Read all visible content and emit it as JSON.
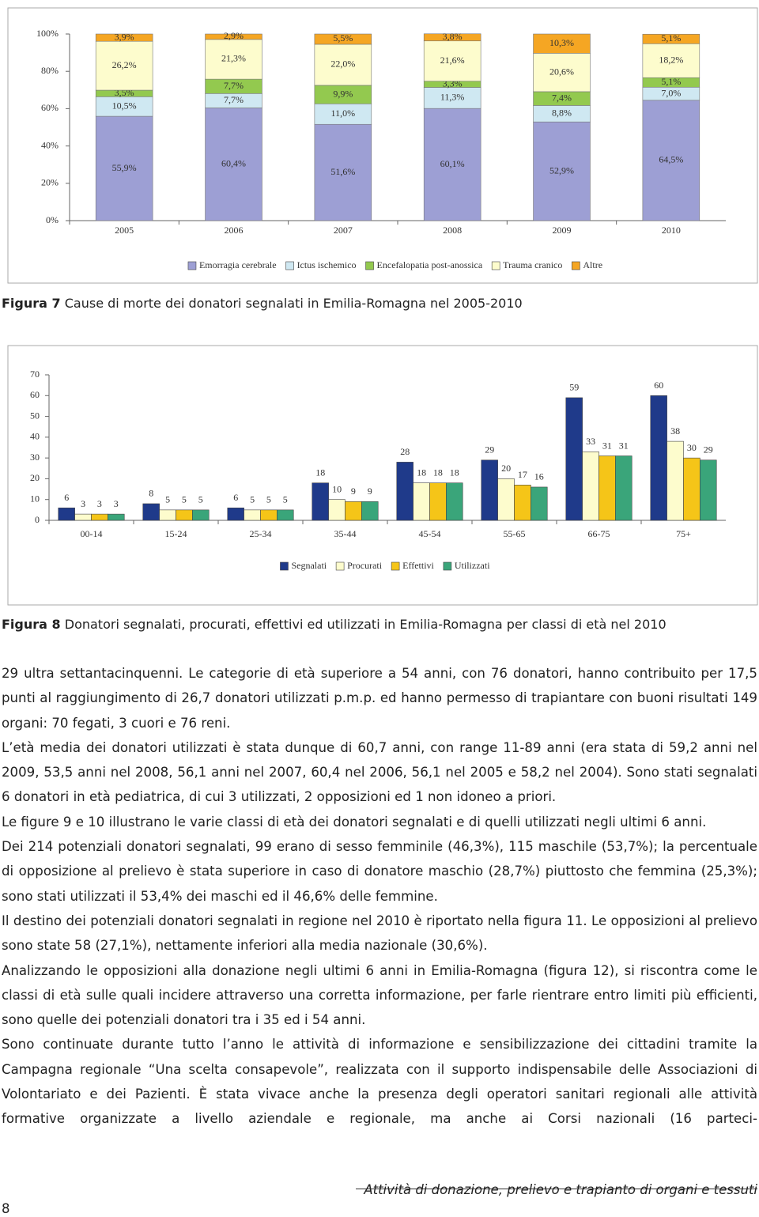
{
  "chart_data": [
    {
      "type": "bar",
      "stacked": true,
      "categories": [
        "2005",
        "2006",
        "2007",
        "2008",
        "2009",
        "2010"
      ],
      "series": [
        {
          "name": "Emorragia cerebrale",
          "color": "#9d9fd4",
          "values": [
            55.9,
            60.4,
            51.6,
            60.1,
            52.9,
            64.5
          ],
          "value_labels": [
            "55,9%",
            "60,4%",
            "51,6%",
            "60,1%",
            "52,9%",
            "64,5%"
          ]
        },
        {
          "name": "Ictus ischemico",
          "color": "#cfe8f2",
          "values": [
            10.5,
            7.7,
            11.0,
            11.3,
            8.8,
            7.0
          ],
          "value_labels": [
            "10,5%",
            "7,7%",
            "11,0%",
            "11,3%",
            "8,8%",
            "7,0%"
          ]
        },
        {
          "name": "Encefalopatia post-anossica",
          "color": "#93c94f",
          "values": [
            3.5,
            7.7,
            9.9,
            3.3,
            7.4,
            5.1
          ],
          "value_labels": [
            "3,5%",
            "7,7%",
            "9,9%",
            "3,3%",
            "7,4%",
            "5,1%"
          ]
        },
        {
          "name": "Trauma cranico",
          "color": "#fdfccd",
          "values": [
            26.2,
            21.3,
            22.0,
            21.6,
            20.6,
            18.2
          ],
          "value_labels": [
            "26,2%",
            "21,3%",
            "22,0%",
            "21,6%",
            "20,6%",
            "18,2%"
          ]
        },
        {
          "name": "Altre",
          "color": "#f5a623",
          "values": [
            3.9,
            2.9,
            5.5,
            3.8,
            10.3,
            5.1
          ],
          "value_labels": [
            "3,9%",
            "2,9%",
            "5,5%",
            "3,8%",
            "10,3%",
            "5,1%"
          ]
        }
      ],
      "ylim": [
        0,
        100
      ],
      "yticks": [
        {
          "value": 0,
          "label": "0%"
        },
        {
          "value": 20,
          "label": "20%"
        },
        {
          "value": 40,
          "label": "40%"
        },
        {
          "value": 60,
          "label": "60%"
        },
        {
          "value": 80,
          "label": "80%"
        },
        {
          "value": 100,
          "label": "100%"
        }
      ],
      "legend": "bottom"
    },
    {
      "type": "bar",
      "stacked": false,
      "categories": [
        "00-14",
        "15-24",
        "25-34",
        "35-44",
        "45-54",
        "55-65",
        "66-75",
        "75+"
      ],
      "series": [
        {
          "name": "Segnalati",
          "color": "#1f3a8a",
          "values": [
            6,
            8,
            6,
            18,
            28,
            29,
            59,
            60
          ]
        },
        {
          "name": "Procurati",
          "color": "#fdfccd",
          "values": [
            3,
            5,
            5,
            10,
            18,
            20,
            33,
            38
          ]
        },
        {
          "name": "Effettivi",
          "color": "#f5c518",
          "values": [
            3,
            5,
            5,
            9,
            18,
            17,
            31,
            30
          ]
        },
        {
          "name": "Utilizzati",
          "color": "#3aa57a",
          "values": [
            3,
            5,
            5,
            9,
            18,
            16,
            31,
            29
          ]
        }
      ],
      "ylim": [
        0,
        70
      ],
      "yticks": [
        0,
        10,
        20,
        30,
        40,
        50,
        60,
        70
      ],
      "legend": "bottom"
    }
  ],
  "figure_captions": [
    {
      "label": "Figura 7",
      "text": "Cause di morte dei donatori segnalati in Emilia-Romagna nel 2005-2010"
    },
    {
      "label": "Figura 8",
      "text": "Donatori segnalati, procurati, effettivi ed utilizzati in Emilia-Romagna per classi di età nel 2010"
    }
  ],
  "body": {
    "paragraphs": [
      "29 ultra settantacinquenni. Le categorie di età superiore a 54 anni, con 76 donatori, hanno contribuito per 17,5 punti al raggiungimento di 26,7 donatori utilizzati p.m.p. ed hanno permesso di trapiantare con buoni risultati 149 organi: 70 fegati, 3 cuori e 76 reni.",
      "L’età media dei donatori utilizzati è stata dunque di 60,7 anni, con range 11-89 anni (era stata di 59,2 anni nel 2009, 53,5 anni nel 2008, 56,1 anni nel 2007, 60,4 nel 2006, 56,1 nel 2005 e 58,2 nel 2004). Sono stati segnalati 6 donatori in età pediatrica, di cui 3 utilizzati, 2 opposizioni ed 1 non idoneo a priori.",
      "Le figure 9 e 10 illustrano le varie classi di età dei donatori segnalati e di quelli utilizzati negli ultimi 6 anni.",
      "Dei 214 potenziali donatori segnalati, 99 erano di sesso femminile (46,3%), 115 maschile (53,7%); la percentuale di opposizione al prelievo è stata superiore in caso di donatore maschio (28,7%) piuttosto che femmina (25,3%); sono stati utilizzati il 53,4% dei maschi ed il 46,6% delle femmine.",
      "Il destino dei potenziali donatori segnalati in regione nel 2010 è riportato nella figura 11. Le opposizioni al prelievo sono state 58 (27,1%), nettamente inferiori alla media nazionale (30,6%).",
      "Analizzando le opposizioni alla donazione negli ultimi 6 anni in Emilia-Romagna (figura 12), si riscontra come le classi di età sulle quali incidere attraverso una corretta informazione, per farle rientrare entro limiti più efficienti, sono quelle dei potenziali donatori tra i 35 ed i 54 anni.",
      "Sono continuate durante tutto l’anno le attività di informazione e sensibilizzazione dei cittadini tramite la Campagna regionale “Una scelta consapevole”, realizzata con il supporto indispensabile delle Associazioni di Volontariato e dei Pazienti. È stata vivace anche la presenza degli operatori sanitari regionali alle attività formative organizzate a livello aziendale e regionale, ma anche ai Corsi nazionali (16 parteci-"
    ]
  },
  "footer": {
    "title": "Attività di donazione, prelievo e trapianto di organi e tessuti",
    "page": "8"
  }
}
